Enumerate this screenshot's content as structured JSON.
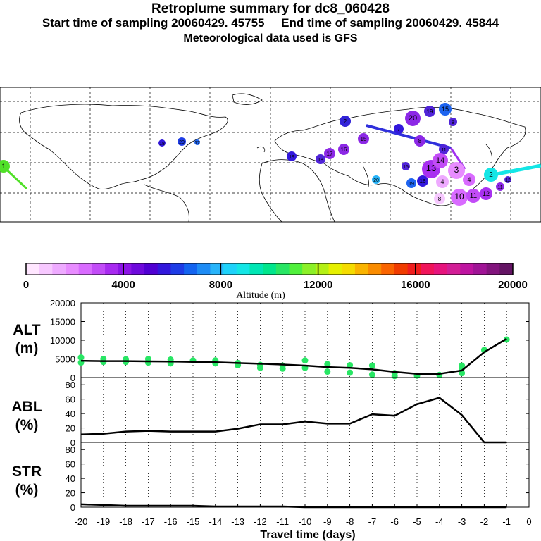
{
  "header": {
    "title": "Retroplume summary for dc8_060428",
    "sampling_line": "Start time of sampling 20060429. 45755     End time of sampling 20060429. 45844",
    "met_line": "Meteorological data used is GFS"
  },
  "map": {
    "land_color": "#ffffff",
    "grid_color": "#000000",
    "plume_labels": [
      "1",
      "2",
      "3",
      "4",
      "5",
      "6",
      "7",
      "8",
      "9",
      "10",
      "11",
      "12",
      "13",
      "14",
      "15",
      "16",
      "17",
      "18",
      "19",
      "20"
    ],
    "legend_labels": [
      "20"
    ]
  },
  "colorbar": {
    "ticks": [
      "0",
      "4000",
      "8000",
      "12000",
      "16000",
      "20000"
    ],
    "label": "Altitude (m)",
    "colors": [
      "#ffe6ff",
      "#f7c8ff",
      "#eeaaff",
      "#e88cff",
      "#d96bff",
      "#c24cf7",
      "#a82af0",
      "#8c14e6",
      "#6e0adc",
      "#5000d2",
      "#3218dc",
      "#1e3ce6",
      "#1464f0",
      "#1e8cf5",
      "#28b4fa",
      "#1ed2fa",
      "#14e6e6",
      "#00e6b4",
      "#00e68c",
      "#28e664",
      "#50f03c",
      "#8cf028",
      "#b4f014",
      "#e6f000",
      "#f5dc00",
      "#fab400",
      "#fa8c00",
      "#fa6400",
      "#f03c00",
      "#f01e1e",
      "#f0145a",
      "#e6147d",
      "#d21e96",
      "#be14a0",
      "#a01496",
      "#82147d",
      "#641464"
    ]
  },
  "chart_data": [
    {
      "type": "line",
      "panel": "ALT",
      "ylabel": "ALT (m)",
      "ylabel_line1": "ALT",
      "ylabel_line2": "(m)",
      "ylim": [
        0,
        20000
      ],
      "yticks": [
        "20000",
        "15000",
        "10000",
        "5000",
        "0"
      ],
      "ytick_values": [
        20000,
        15000,
        10000,
        5000,
        0
      ],
      "x": [
        -20,
        -19,
        -18,
        -17,
        -16,
        -15,
        -14,
        -13,
        -12,
        -11,
        -10,
        -9,
        -8,
        -7,
        -6,
        -5,
        -4,
        -3,
        -2,
        -1
      ],
      "values": [
        4500,
        4400,
        4400,
        4350,
        4300,
        4200,
        4100,
        3900,
        3700,
        3500,
        3200,
        2800,
        2600,
        2200,
        1500,
        1000,
        1000,
        1900,
        6800,
        10400
      ],
      "points": [
        {
          "x": -20,
          "y": 5400
        },
        {
          "x": -20,
          "y": 4000
        },
        {
          "x": -19,
          "y": 5000
        },
        {
          "x": -19,
          "y": 4200
        },
        {
          "x": -18,
          "y": 4900
        },
        {
          "x": -18,
          "y": 4200
        },
        {
          "x": -17,
          "y": 5000
        },
        {
          "x": -17,
          "y": 4000
        },
        {
          "x": -16,
          "y": 4800
        },
        {
          "x": -16,
          "y": 3800
        },
        {
          "x": -15,
          "y": 4600
        },
        {
          "x": -14,
          "y": 4600
        },
        {
          "x": -14,
          "y": 3800
        },
        {
          "x": -13,
          "y": 3900
        },
        {
          "x": -13,
          "y": 3300
        },
        {
          "x": -12,
          "y": 3400
        },
        {
          "x": -12,
          "y": 2600
        },
        {
          "x": -11,
          "y": 3200
        },
        {
          "x": -11,
          "y": 2400
        },
        {
          "x": -10,
          "y": 4600
        },
        {
          "x": -10,
          "y": 2600
        },
        {
          "x": -9,
          "y": 3600
        },
        {
          "x": -9,
          "y": 1600
        },
        {
          "x": -8,
          "y": 3300
        },
        {
          "x": -8,
          "y": 1300
        },
        {
          "x": -7,
          "y": 3200
        },
        {
          "x": -7,
          "y": 800
        },
        {
          "x": -6,
          "y": 1200
        },
        {
          "x": -6,
          "y": 400
        },
        {
          "x": -5,
          "y": 500
        },
        {
          "x": -4,
          "y": 700
        },
        {
          "x": -3,
          "y": 3200
        },
        {
          "x": -3,
          "y": 1200
        },
        {
          "x": -3,
          "y": 2500
        },
        {
          "x": -2,
          "y": 7400
        },
        {
          "x": -1,
          "y": 10200
        }
      ]
    },
    {
      "type": "line",
      "panel": "ABL",
      "ylabel": "ABL (%)",
      "ylabel_line1": "ABL",
      "ylabel_line2": "(%)",
      "ylim": [
        0,
        90
      ],
      "yticks": [
        "80",
        "60",
        "40",
        "20",
        "0"
      ],
      "ytick_values": [
        80,
        60,
        40,
        20,
        0
      ],
      "x": [
        -20,
        -19,
        -18,
        -17,
        -16,
        -15,
        -14,
        -13,
        -12,
        -11,
        -10,
        -9,
        -8,
        -7,
        -6,
        -5,
        -4,
        -3,
        -2,
        -1
      ],
      "values": [
        11,
        12,
        15,
        16,
        15,
        15,
        15,
        19,
        25,
        25,
        29,
        26,
        26,
        39,
        37,
        53,
        62,
        38,
        0,
        0
      ]
    },
    {
      "type": "line",
      "panel": "STR",
      "ylabel": "STR (%)",
      "ylabel_line1": "STR",
      "ylabel_line2": "(%)",
      "ylim": [
        0,
        90
      ],
      "yticks": [
        "80",
        "60",
        "40",
        "20",
        "0"
      ],
      "ytick_values": [
        80,
        60,
        40,
        20,
        0
      ],
      "x": [
        -20,
        -19,
        -18,
        -17,
        -16,
        -15,
        -14,
        -13,
        -12,
        -11,
        -10,
        -9,
        -8,
        -7,
        -6,
        -5,
        -4,
        -3,
        -2,
        -1
      ],
      "values": [
        4,
        3,
        2,
        2,
        2,
        2,
        1,
        1,
        1,
        1,
        0,
        0,
        0,
        0,
        0,
        0,
        0,
        0,
        0,
        0
      ],
      "xlabel": "Travel time (days)",
      "xticks": [
        "-20",
        "-19",
        "-18",
        "-17",
        "-16",
        "-15",
        "-14",
        "-13",
        "-12",
        "-11",
        "-10",
        "-9",
        "-8",
        "-7",
        "-6",
        "-5",
        "-4",
        "-3",
        "-2",
        "-1",
        "0"
      ],
      "xtick_values": [
        -20,
        -19,
        -18,
        -17,
        -16,
        -15,
        -14,
        -13,
        -12,
        -11,
        -10,
        -9,
        -8,
        -7,
        -6,
        -5,
        -4,
        -3,
        -2,
        -1,
        0
      ]
    }
  ]
}
